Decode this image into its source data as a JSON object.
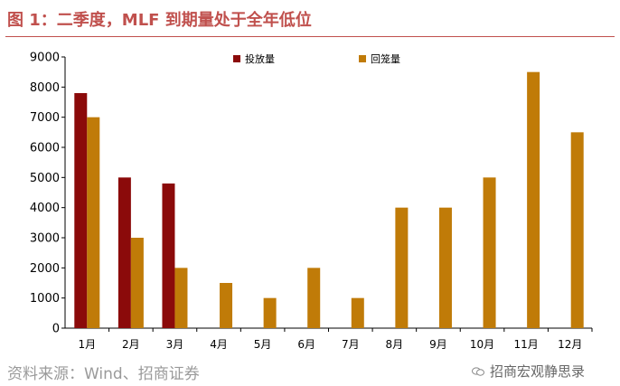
{
  "header": {
    "title": "图 1：二季度，MLF 到期量处于全年低位"
  },
  "footer": {
    "source": "资料来源：Wind、招商证券",
    "watermark": "招商宏观静思录",
    "watermark_icon": "wechat-icon"
  },
  "chart_data": {
    "type": "bar",
    "categories": [
      "1月",
      "2月",
      "3月",
      "4月",
      "5月",
      "6月",
      "7月",
      "8月",
      "9月",
      "10月",
      "11月",
      "12月"
    ],
    "series": [
      {
        "name": "投放量",
        "color": "#8b0a0a",
        "values": [
          7800,
          5000,
          4800,
          null,
          null,
          null,
          null,
          null,
          null,
          null,
          null,
          null
        ]
      },
      {
        "name": "回笼量",
        "color": "#c07b08",
        "values": [
          7000,
          3000,
          2000,
          1500,
          1000,
          2000,
          1000,
          4000,
          4000,
          5000,
          8500,
          6500
        ]
      }
    ],
    "ylim": [
      0,
      9000
    ],
    "yticks": [
      0,
      1000,
      2000,
      3000,
      4000,
      5000,
      6000,
      7000,
      8000,
      9000
    ],
    "grid": false,
    "legend": "top"
  }
}
